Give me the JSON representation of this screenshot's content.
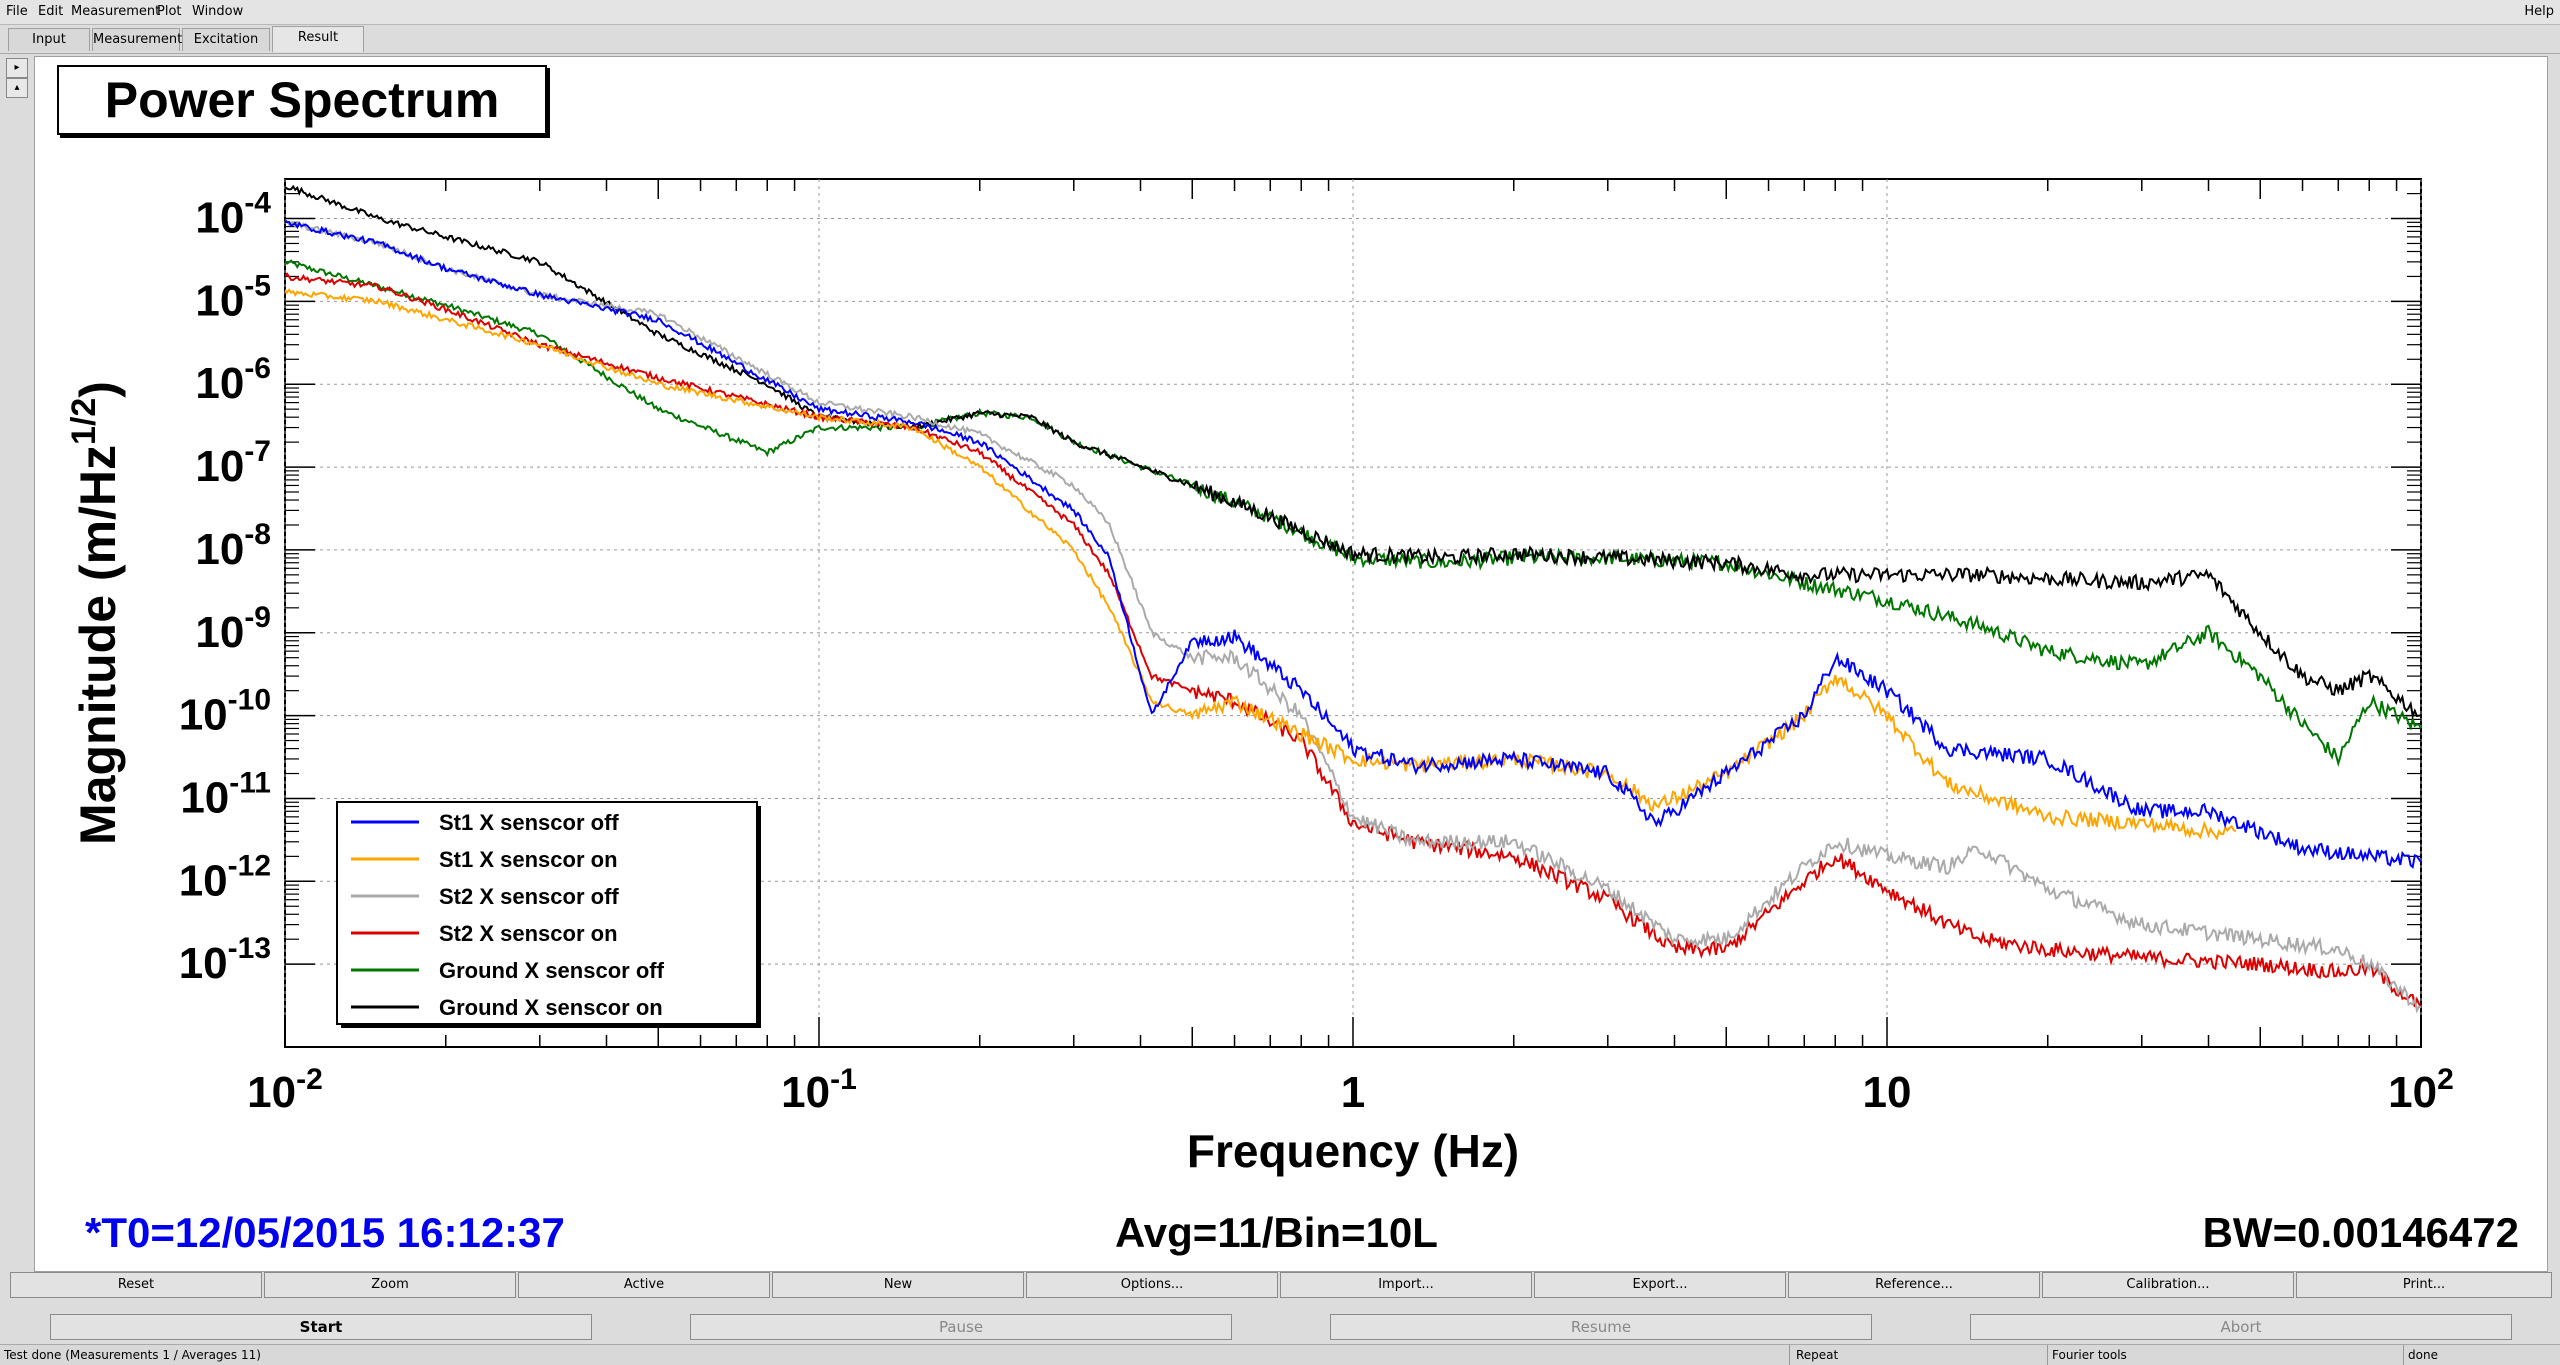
{
  "menu": [
    "File",
    "Edit",
    "Measurement",
    "Plot",
    "Window"
  ],
  "help": "Help",
  "tabs": [
    "Input",
    "Measurement",
    "Excitation",
    "Result"
  ],
  "active_tab": "Result",
  "plot": {
    "title_box": "Power Spectrum",
    "t0": "*T0=12/05/2015 16:12:37",
    "avg": "Avg=11/Bin=10L",
    "bw": "BW=0.00146472"
  },
  "chart_data": {
    "type": "line",
    "title": "Power Spectrum",
    "xlabel": "Frequency (Hz)",
    "ylabel": "Magnitude (m/Hz^1/2)",
    "xscale": "log",
    "yscale": "log",
    "xlim": [
      0.01,
      100
    ],
    "ylim": [
      1e-14,
      0.0003
    ],
    "x_ticks": [
      {
        "base": "10",
        "exp": "-2"
      },
      {
        "base": "10",
        "exp": "-1"
      },
      {
        "base": "1",
        "exp": ""
      },
      {
        "base": "10",
        "exp": ""
      },
      {
        "base": "10",
        "exp": "2"
      }
    ],
    "y_ticks": [
      "-13",
      "-12",
      "-11",
      "-10",
      "-9",
      "-8",
      "-7",
      "-6",
      "-5",
      "-4"
    ],
    "grid": true,
    "legend_position": "bottom-left",
    "series": [
      {
        "name": "St1 X senscor off",
        "color": "#0000ff",
        "x": [
          0.01,
          0.015,
          0.02,
          0.03,
          0.05,
          0.1,
          0.15,
          0.2,
          0.3,
          0.35,
          0.42,
          0.5,
          0.6,
          0.8,
          1,
          1.3,
          2,
          3,
          3.7,
          5,
          7,
          8,
          10,
          13,
          20,
          30,
          40,
          50,
          60,
          80,
          100
        ],
        "y": [
          9e-05,
          5e-05,
          2.5e-05,
          1.2e-05,
          6e-06,
          5e-07,
          3.5e-07,
          2e-07,
          3e-08,
          8e-09,
          1e-10,
          8e-10,
          9e-10,
          2e-10,
          4e-11,
          2.5e-11,
          3e-11,
          2e-11,
          5e-12,
          2e-11,
          1e-10,
          5e-10,
          2e-10,
          4e-11,
          3e-11,
          7e-12,
          7e-12,
          4e-12,
          2.5e-12,
          2e-12,
          1.7e-12
        ]
      },
      {
        "name": "St1 X senscor on",
        "color": "#ffa500",
        "x": [
          0.01,
          0.015,
          0.02,
          0.03,
          0.05,
          0.1,
          0.15,
          0.2,
          0.3,
          0.35,
          0.42,
          0.5,
          0.6,
          0.8,
          1,
          1.3,
          2,
          3,
          3.7,
          5,
          7,
          8,
          10,
          13,
          20,
          30,
          40,
          45
        ],
        "y": [
          1.3e-05,
          1e-05,
          6e-06,
          3e-06,
          1e-06,
          4e-07,
          3e-07,
          1e-07,
          1e-08,
          2e-09,
          1.5e-10,
          1e-10,
          1.5e-10,
          6e-11,
          3e-11,
          2.5e-11,
          3e-11,
          2e-11,
          8e-12,
          2e-11,
          1e-10,
          3e-10,
          1e-10,
          1.5e-11,
          6e-12,
          5e-12,
          4e-12,
          4e-12
        ]
      },
      {
        "name": "St2 X senscor off",
        "color": "#aaaaaa",
        "x": [
          0.01,
          0.015,
          0.02,
          0.03,
          0.05,
          0.1,
          0.15,
          0.2,
          0.3,
          0.35,
          0.42,
          0.5,
          0.6,
          0.8,
          1,
          1.3,
          2,
          3,
          4,
          5,
          7,
          8,
          10,
          13,
          15,
          20,
          30,
          50,
          70,
          80,
          100
        ],
        "y": [
          9e-05,
          5e-05,
          2.5e-05,
          1.2e-05,
          7e-06,
          6e-07,
          4e-07,
          2.5e-07,
          6e-08,
          2e-08,
          1e-09,
          5e-10,
          5e-10,
          1e-10,
          6e-12,
          3e-12,
          3e-12,
          8e-13,
          2e-13,
          2e-13,
          1.5e-12,
          3e-12,
          2e-12,
          1.5e-12,
          2.5e-12,
          8e-13,
          3e-13,
          2e-13,
          1.5e-13,
          1e-13,
          3e-14
        ]
      },
      {
        "name": "St2 X senscor on",
        "color": "#dd0000",
        "x": [
          0.01,
          0.015,
          0.02,
          0.03,
          0.05,
          0.1,
          0.15,
          0.2,
          0.3,
          0.35,
          0.42,
          0.5,
          0.6,
          0.8,
          1,
          1.3,
          2,
          3,
          4,
          5,
          7,
          8,
          10,
          13,
          15,
          20,
          30,
          50,
          70,
          80,
          100
        ],
        "y": [
          2e-05,
          1.5e-05,
          8e-06,
          3e-06,
          1.2e-06,
          4e-07,
          3e-07,
          1.5e-07,
          2e-08,
          5e-09,
          3e-10,
          2e-10,
          1.5e-10,
          5e-11,
          5e-12,
          3e-12,
          2e-12,
          6e-13,
          1.5e-13,
          1.5e-13,
          1e-12,
          2e-12,
          8e-13,
          3e-13,
          2e-13,
          1.5e-13,
          1.2e-13,
          1e-13,
          8e-14,
          9e-14,
          3e-14
        ]
      },
      {
        "name": "Ground X senscor off",
        "color": "#007700",
        "x": [
          0.01,
          0.015,
          0.02,
          0.03,
          0.05,
          0.08,
          0.1,
          0.15,
          0.2,
          0.25,
          0.3,
          0.5,
          0.7,
          1,
          1.5,
          2,
          3,
          5,
          7,
          10,
          15,
          20,
          30,
          40,
          50,
          60,
          70,
          80,
          100
        ],
        "y": [
          3e-05,
          1.5e-05,
          9e-06,
          4e-06,
          5e-07,
          1.5e-07,
          3e-07,
          3e-07,
          4.5e-07,
          4e-07,
          2e-07,
          6e-08,
          2.5e-08,
          8e-09,
          7e-09,
          8e-09,
          8e-09,
          7e-09,
          4e-09,
          2.5e-09,
          1.2e-09,
          6e-10,
          4e-10,
          1e-09,
          3e-10,
          8e-11,
          3e-11,
          1.5e-10,
          7e-11
        ]
      },
      {
        "name": "Ground X senscor on",
        "color": "#000000",
        "x": [
          0.01,
          0.015,
          0.02,
          0.03,
          0.05,
          0.08,
          0.1,
          0.15,
          0.2,
          0.25,
          0.3,
          0.5,
          0.7,
          1,
          1.5,
          2,
          3,
          5,
          7,
          10,
          15,
          20,
          30,
          40,
          50,
          60,
          70,
          80,
          100
        ],
        "y": [
          0.00025,
          0.0001,
          6e-05,
          3e-05,
          4e-06,
          1e-06,
          4e-07,
          3e-07,
          4.5e-07,
          4e-07,
          2e-07,
          6e-08,
          2.5e-08,
          9e-09,
          8e-09,
          9e-09,
          8e-09,
          7e-09,
          5e-09,
          5e-09,
          5e-09,
          4.5e-09,
          4e-09,
          5e-09,
          1e-09,
          3e-10,
          2e-10,
          3e-10,
          1e-10
        ]
      }
    ]
  },
  "buttons_row1": [
    "Reset",
    "Zoom",
    "Active",
    "New",
    "Options...",
    "Import...",
    "Export...",
    "Reference...",
    "Calibration...",
    "Print..."
  ],
  "buttons_row2": [
    {
      "label": "Start",
      "enabled": true
    },
    {
      "label": "Pause",
      "enabled": false
    },
    {
      "label": "Resume",
      "enabled": false
    },
    {
      "label": "Abort",
      "enabled": false
    }
  ],
  "status": {
    "message": "Test done (Measurements 1 / Averages 11)",
    "repeat": "Repeat",
    "tools": "Fourier tools",
    "state": "done"
  },
  "colors": {
    "background": "#dcdcdc",
    "plot_background": "#ffffff",
    "t0_text": "#0000ee"
  }
}
